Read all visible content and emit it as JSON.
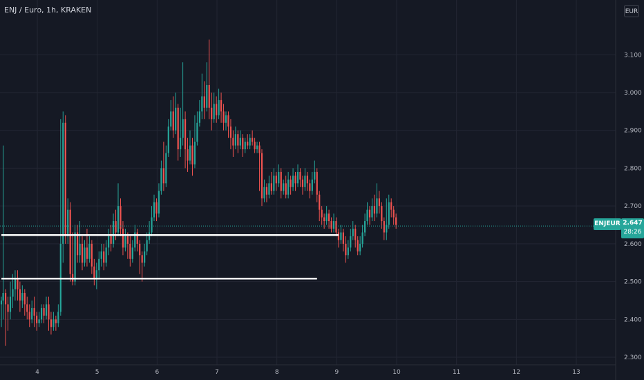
{
  "header": {
    "title": "ENJ / Euro, 1h, KRAKEN",
    "currency_button": "EUR"
  },
  "last_price": {
    "symbol": "ENJEUR",
    "price": "2.647",
    "countdown": "28:26",
    "value": 2.647,
    "color": "#26a69a"
  },
  "colors": {
    "background": "#151924",
    "grid": "#232633",
    "up": "#26a69a",
    "down": "#ef5350",
    "level_line": "#ffffff"
  },
  "chart_data": {
    "type": "candlestick",
    "title": "ENJ / Euro, 1h, KRAKEN",
    "ylim": [
      2.28,
      3.19
    ],
    "xlim": [
      3.4,
      13.8
    ],
    "y_ticks": [
      "3.100",
      "3.000",
      "2.900",
      "2.800",
      "2.700",
      "2.600",
      "2.500",
      "2.400",
      "2.300"
    ],
    "x_ticks": [
      "4",
      "5",
      "6",
      "7",
      "8",
      "9",
      "10",
      "11",
      "12",
      "13"
    ],
    "grid": true,
    "horizontal_levels": [
      {
        "y": 2.623,
        "x_start": 3.4,
        "x_end": 9.03
      },
      {
        "y": 2.508,
        "x_start": 3.4,
        "x_end": 8.67
      }
    ],
    "candles": [
      [
        3.4,
        2.44,
        2.45,
        2.38,
        2.46
      ],
      [
        3.43,
        2.45,
        2.47,
        2.4,
        2.86
      ],
      [
        3.47,
        2.47,
        2.44,
        2.33,
        2.48
      ],
      [
        3.51,
        2.44,
        2.42,
        2.37,
        2.46
      ],
      [
        3.55,
        2.42,
        2.46,
        2.4,
        2.5
      ],
      [
        3.59,
        2.46,
        2.48,
        2.43,
        2.52
      ],
      [
        3.63,
        2.48,
        2.51,
        2.45,
        2.53
      ],
      [
        3.67,
        2.51,
        2.48,
        2.45,
        2.53
      ],
      [
        3.71,
        2.48,
        2.45,
        2.42,
        2.5
      ],
      [
        3.75,
        2.45,
        2.47,
        2.43,
        2.49
      ],
      [
        3.79,
        2.47,
        2.44,
        2.41,
        2.48
      ],
      [
        3.83,
        2.44,
        2.42,
        2.4,
        2.46
      ],
      [
        3.87,
        2.42,
        2.4,
        2.38,
        2.44
      ],
      [
        3.91,
        2.4,
        2.43,
        2.39,
        2.45
      ],
      [
        3.95,
        2.43,
        2.41,
        2.38,
        2.46
      ],
      [
        3.99,
        2.41,
        2.39,
        2.37,
        2.42
      ],
      [
        4.03,
        2.39,
        2.4,
        2.38,
        2.42
      ],
      [
        4.07,
        2.4,
        2.43,
        2.39,
        2.44
      ],
      [
        4.11,
        2.43,
        2.41,
        2.39,
        2.44
      ],
      [
        4.15,
        2.41,
        2.44,
        2.4,
        2.46
      ],
      [
        4.19,
        2.44,
        2.4,
        2.37,
        2.46
      ],
      [
        4.23,
        2.4,
        2.38,
        2.36,
        2.42
      ],
      [
        4.27,
        2.38,
        2.4,
        2.37,
        2.42
      ],
      [
        4.31,
        2.4,
        2.39,
        2.37,
        2.41
      ],
      [
        4.35,
        2.39,
        2.42,
        2.38,
        2.44
      ],
      [
        4.39,
        2.42,
        2.6,
        2.41,
        2.93
      ],
      [
        4.43,
        2.6,
        2.92,
        2.55,
        2.95
      ],
      [
        4.47,
        2.92,
        2.62,
        2.6,
        2.94
      ],
      [
        4.51,
        2.62,
        2.69,
        2.6,
        2.72
      ],
      [
        4.55,
        2.69,
        2.52,
        2.5,
        2.71
      ],
      [
        4.59,
        2.52,
        2.5,
        2.49,
        2.63
      ],
      [
        4.63,
        2.5,
        2.63,
        2.49,
        2.65
      ],
      [
        4.67,
        2.63,
        2.57,
        2.55,
        2.65
      ],
      [
        4.71,
        2.57,
        2.6,
        2.55,
        2.66
      ],
      [
        4.75,
        2.6,
        2.55,
        2.53,
        2.62
      ],
      [
        4.79,
        2.55,
        2.59,
        2.54,
        2.61
      ],
      [
        4.83,
        2.59,
        2.56,
        2.54,
        2.64
      ],
      [
        4.87,
        2.56,
        2.6,
        2.55,
        2.62
      ],
      [
        4.91,
        2.6,
        2.54,
        2.52,
        2.61
      ],
      [
        4.95,
        2.54,
        2.51,
        2.49,
        2.56
      ],
      [
        4.99,
        2.51,
        2.53,
        2.48,
        2.55
      ],
      [
        5.03,
        2.53,
        2.56,
        2.51,
        2.58
      ],
      [
        5.07,
        2.56,
        2.58,
        2.54,
        2.6
      ],
      [
        5.11,
        2.58,
        2.55,
        2.53,
        2.6
      ],
      [
        5.15,
        2.55,
        2.59,
        2.54,
        2.61
      ],
      [
        5.19,
        2.59,
        2.62,
        2.57,
        2.64
      ],
      [
        5.23,
        2.62,
        2.6,
        2.58,
        2.65
      ],
      [
        5.27,
        2.6,
        2.66,
        2.59,
        2.68
      ],
      [
        5.31,
        2.66,
        2.63,
        2.61,
        2.69
      ],
      [
        5.35,
        2.63,
        2.7,
        2.62,
        2.76
      ],
      [
        5.39,
        2.7,
        2.64,
        2.62,
        2.72
      ],
      [
        5.43,
        2.64,
        2.59,
        2.57,
        2.66
      ],
      [
        5.47,
        2.59,
        2.62,
        2.58,
        2.64
      ],
      [
        5.51,
        2.62,
        2.6,
        2.56,
        2.63
      ],
      [
        5.55,
        2.6,
        2.56,
        2.54,
        2.62
      ],
      [
        5.59,
        2.56,
        2.59,
        2.55,
        2.61
      ],
      [
        5.63,
        2.59,
        2.63,
        2.58,
        2.65
      ],
      [
        5.67,
        2.63,
        2.6,
        2.58,
        2.64
      ],
      [
        5.71,
        2.6,
        2.57,
        2.52,
        2.61
      ],
      [
        5.75,
        2.57,
        2.55,
        2.5,
        2.58
      ],
      [
        5.79,
        2.55,
        2.58,
        2.54,
        2.6
      ],
      [
        5.83,
        2.58,
        2.61,
        2.57,
        2.63
      ],
      [
        5.87,
        2.61,
        2.63,
        2.6,
        2.66
      ],
      [
        5.91,
        2.63,
        2.67,
        2.62,
        2.7
      ],
      [
        5.95,
        2.67,
        2.71,
        2.66,
        2.73
      ],
      [
        5.99,
        2.71,
        2.68,
        2.66,
        2.72
      ],
      [
        6.03,
        2.68,
        2.74,
        2.67,
        2.76
      ],
      [
        6.07,
        2.74,
        2.8,
        2.73,
        2.82
      ],
      [
        6.11,
        2.8,
        2.76,
        2.74,
        2.87
      ],
      [
        6.15,
        2.76,
        2.84,
        2.75,
        2.86
      ],
      [
        6.19,
        2.84,
        2.91,
        2.83,
        2.93
      ],
      [
        6.23,
        2.91,
        2.95,
        2.9,
        2.98
      ],
      [
        6.27,
        2.95,
        2.9,
        2.88,
        2.99
      ],
      [
        6.31,
        2.9,
        2.96,
        2.89,
        3.0
      ],
      [
        6.35,
        2.96,
        2.85,
        2.82,
        2.97
      ],
      [
        6.39,
        2.85,
        2.88,
        2.83,
        2.96
      ],
      [
        6.43,
        2.88,
        2.93,
        2.86,
        3.08
      ],
      [
        6.47,
        2.93,
        2.85,
        2.8,
        2.95
      ],
      [
        6.51,
        2.85,
        2.82,
        2.79,
        2.88
      ],
      [
        6.55,
        2.82,
        2.86,
        2.81,
        2.9
      ],
      [
        6.59,
        2.86,
        2.81,
        2.78,
        2.88
      ],
      [
        6.63,
        2.81,
        2.87,
        2.8,
        2.94
      ],
      [
        6.67,
        2.87,
        2.92,
        2.86,
        2.95
      ],
      [
        6.71,
        2.92,
        2.95,
        2.91,
        2.98
      ],
      [
        6.75,
        2.95,
        2.99,
        2.93,
        3.05
      ],
      [
        6.79,
        2.99,
        2.96,
        2.93,
        3.03
      ],
      [
        6.83,
        2.96,
        3.02,
        2.95,
        3.08
      ],
      [
        6.87,
        3.02,
        2.96,
        2.93,
        3.14
      ],
      [
        6.91,
        2.96,
        2.93,
        2.9,
        3.0
      ],
      [
        6.95,
        2.93,
        2.97,
        2.92,
        3.0
      ],
      [
        6.99,
        2.97,
        2.94,
        2.92,
        2.99
      ],
      [
        7.03,
        2.94,
        2.98,
        2.93,
        3.01
      ],
      [
        7.07,
        2.98,
        2.95,
        2.92,
        3.0
      ],
      [
        7.11,
        2.95,
        2.92,
        2.9,
        2.97
      ],
      [
        7.15,
        2.92,
        2.94,
        2.9,
        2.95
      ],
      [
        7.19,
        2.94,
        2.91,
        2.88,
        2.95
      ],
      [
        7.23,
        2.91,
        2.88,
        2.85,
        2.93
      ],
      [
        7.27,
        2.88,
        2.86,
        2.83,
        2.9
      ],
      [
        7.31,
        2.86,
        2.89,
        2.85,
        2.91
      ],
      [
        7.35,
        2.89,
        2.86,
        2.84,
        2.9
      ],
      [
        7.39,
        2.86,
        2.88,
        2.85,
        2.9
      ],
      [
        7.43,
        2.88,
        2.85,
        2.83,
        2.89
      ],
      [
        7.47,
        2.85,
        2.87,
        2.84,
        2.88
      ],
      [
        7.51,
        2.87,
        2.86,
        2.85,
        2.89
      ],
      [
        7.55,
        2.86,
        2.88,
        2.85,
        2.89
      ],
      [
        7.59,
        2.88,
        2.87,
        2.86,
        2.9
      ],
      [
        7.63,
        2.87,
        2.85,
        2.84,
        2.88
      ],
      [
        7.67,
        2.85,
        2.86,
        2.84,
        2.87
      ],
      [
        7.71,
        2.86,
        2.84,
        2.74,
        2.87
      ],
      [
        7.75,
        2.84,
        2.72,
        2.7,
        2.85
      ],
      [
        7.79,
        2.72,
        2.75,
        2.71,
        2.77
      ],
      [
        7.83,
        2.75,
        2.73,
        2.71,
        2.76
      ],
      [
        7.87,
        2.73,
        2.76,
        2.72,
        2.78
      ],
      [
        7.91,
        2.76,
        2.74,
        2.73,
        2.79
      ],
      [
        7.95,
        2.74,
        2.78,
        2.73,
        2.8
      ],
      [
        7.99,
        2.78,
        2.76,
        2.74,
        2.79
      ],
      [
        8.03,
        2.76,
        2.79,
        2.75,
        2.81
      ],
      [
        8.07,
        2.79,
        2.74,
        2.72,
        2.8
      ],
      [
        8.11,
        2.74,
        2.76,
        2.73,
        2.77
      ],
      [
        8.15,
        2.76,
        2.73,
        2.72,
        2.78
      ],
      [
        8.19,
        2.73,
        2.77,
        2.72,
        2.79
      ],
      [
        8.23,
        2.77,
        2.75,
        2.73,
        2.78
      ],
      [
        8.27,
        2.75,
        2.78,
        2.74,
        2.8
      ],
      [
        8.31,
        2.78,
        2.76,
        2.74,
        2.79
      ],
      [
        8.35,
        2.76,
        2.79,
        2.75,
        2.81
      ],
      [
        8.39,
        2.79,
        2.77,
        2.75,
        2.8
      ],
      [
        8.43,
        2.77,
        2.75,
        2.73,
        2.78
      ],
      [
        8.47,
        2.75,
        2.78,
        2.74,
        2.8
      ],
      [
        8.51,
        2.78,
        2.76,
        2.74,
        2.79
      ],
      [
        8.55,
        2.76,
        2.74,
        2.72,
        2.77
      ],
      [
        8.59,
        2.74,
        2.77,
        2.73,
        2.79
      ],
      [
        8.63,
        2.77,
        2.79,
        2.76,
        2.82
      ],
      [
        8.67,
        2.79,
        2.73,
        2.71,
        2.8
      ],
      [
        8.71,
        2.73,
        2.69,
        2.66,
        2.74
      ],
      [
        8.75,
        2.69,
        2.67,
        2.65,
        2.7
      ],
      [
        8.79,
        2.67,
        2.66,
        2.64,
        2.68
      ],
      [
        8.83,
        2.66,
        2.68,
        2.65,
        2.7
      ],
      [
        8.87,
        2.68,
        2.66,
        2.64,
        2.69
      ],
      [
        8.91,
        2.66,
        2.64,
        2.63,
        2.67
      ],
      [
        8.95,
        2.64,
        2.66,
        2.63,
        2.68
      ],
      [
        8.99,
        2.66,
        2.63,
        2.62,
        2.67
      ],
      [
        9.03,
        2.63,
        2.61,
        2.59,
        2.64
      ],
      [
        9.07,
        2.61,
        2.63,
        2.6,
        2.65
      ],
      [
        9.11,
        2.63,
        2.6,
        2.58,
        2.64
      ],
      [
        9.15,
        2.6,
        2.57,
        2.55,
        2.62
      ],
      [
        9.19,
        2.57,
        2.59,
        2.56,
        2.61
      ],
      [
        9.23,
        2.59,
        2.62,
        2.58,
        2.64
      ],
      [
        9.27,
        2.62,
        2.64,
        2.61,
        2.66
      ],
      [
        9.31,
        2.64,
        2.61,
        2.59,
        2.65
      ],
      [
        9.35,
        2.61,
        2.58,
        2.57,
        2.62
      ],
      [
        9.39,
        2.58,
        2.6,
        2.57,
        2.62
      ],
      [
        9.43,
        2.6,
        2.63,
        2.59,
        2.65
      ],
      [
        9.47,
        2.63,
        2.66,
        2.62,
        2.68
      ],
      [
        9.51,
        2.66,
        2.69,
        2.65,
        2.71
      ],
      [
        9.55,
        2.69,
        2.67,
        2.65,
        2.7
      ],
      [
        9.59,
        2.67,
        2.7,
        2.66,
        2.72
      ],
      [
        9.63,
        2.7,
        2.68,
        2.66,
        2.73
      ],
      [
        9.67,
        2.68,
        2.72,
        2.67,
        2.76
      ],
      [
        9.71,
        2.72,
        2.7,
        2.68,
        2.74
      ],
      [
        9.75,
        2.7,
        2.66,
        2.64,
        2.71
      ],
      [
        9.79,
        2.66,
        2.63,
        2.61,
        2.67
      ],
      [
        9.83,
        2.63,
        2.65,
        2.61,
        2.72
      ],
      [
        9.87,
        2.65,
        2.71,
        2.64,
        2.73
      ],
      [
        9.91,
        2.71,
        2.69,
        2.67,
        2.72
      ],
      [
        9.95,
        2.69,
        2.67,
        2.65,
        2.7
      ],
      [
        9.99,
        2.67,
        2.65,
        2.64,
        2.68
      ]
    ]
  }
}
